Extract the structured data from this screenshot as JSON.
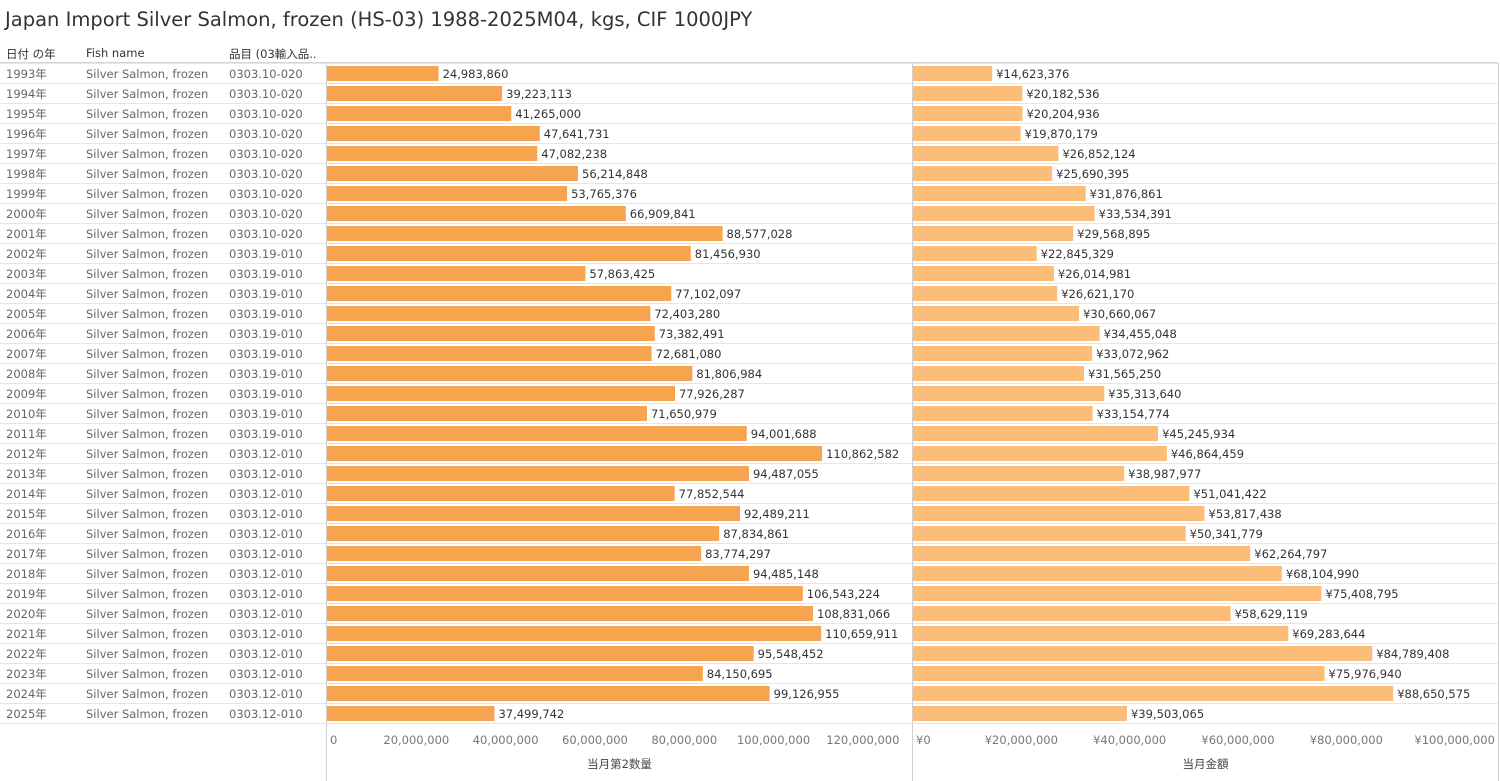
{
  "title": "Japan Import Silver Salmon, frozen (HS-03) 1988-2025M04, kgs, CIF 1000JPY",
  "headers": {
    "year": "日付 の年",
    "fish": "Fish name",
    "code": "品目 (03輸入品.."
  },
  "colors": {
    "qty_bar": "#f6a44f",
    "amt_bar": "#fbbd78",
    "grid": "#dedede",
    "row_line": "#e6e6e6",
    "axis_text": "#777777"
  },
  "chart_data": [
    {
      "type": "table",
      "columns": [
        "日付 の年",
        "Fish name",
        "品目 (03輸入品.."
      ],
      "rows": [
        [
          "1993年",
          "Silver Salmon, frozen",
          "0303.10-020"
        ],
        [
          "1994年",
          "Silver Salmon, frozen",
          "0303.10-020"
        ],
        [
          "1995年",
          "Silver Salmon, frozen",
          "0303.10-020"
        ],
        [
          "1996年",
          "Silver Salmon, frozen",
          "0303.10-020"
        ],
        [
          "1997年",
          "Silver Salmon, frozen",
          "0303.10-020"
        ],
        [
          "1998年",
          "Silver Salmon, frozen",
          "0303.10-020"
        ],
        [
          "1999年",
          "Silver Salmon, frozen",
          "0303.10-020"
        ],
        [
          "2000年",
          "Silver Salmon, frozen",
          "0303.10-020"
        ],
        [
          "2001年",
          "Silver Salmon, frozen",
          "0303.10-020"
        ],
        [
          "2002年",
          "Silver Salmon, frozen",
          "0303.19-010"
        ],
        [
          "2003年",
          "Silver Salmon, frozen",
          "0303.19-010"
        ],
        [
          "2004年",
          "Silver Salmon, frozen",
          "0303.19-010"
        ],
        [
          "2005年",
          "Silver Salmon, frozen",
          "0303.19-010"
        ],
        [
          "2006年",
          "Silver Salmon, frozen",
          "0303.19-010"
        ],
        [
          "2007年",
          "Silver Salmon, frozen",
          "0303.19-010"
        ],
        [
          "2008年",
          "Silver Salmon, frozen",
          "0303.19-010"
        ],
        [
          "2009年",
          "Silver Salmon, frozen",
          "0303.19-010"
        ],
        [
          "2010年",
          "Silver Salmon, frozen",
          "0303.19-010"
        ],
        [
          "2011年",
          "Silver Salmon, frozen",
          "0303.19-010"
        ],
        [
          "2012年",
          "Silver Salmon, frozen",
          "0303.12-010"
        ],
        [
          "2013年",
          "Silver Salmon, frozen",
          "0303.12-010"
        ],
        [
          "2014年",
          "Silver Salmon, frozen",
          "0303.12-010"
        ],
        [
          "2015年",
          "Silver Salmon, frozen",
          "0303.12-010"
        ],
        [
          "2016年",
          "Silver Salmon, frozen",
          "0303.12-010"
        ],
        [
          "2017年",
          "Silver Salmon, frozen",
          "0303.12-010"
        ],
        [
          "2018年",
          "Silver Salmon, frozen",
          "0303.12-010"
        ],
        [
          "2019年",
          "Silver Salmon, frozen",
          "0303.12-010"
        ],
        [
          "2020年",
          "Silver Salmon, frozen",
          "0303.12-010"
        ],
        [
          "2021年",
          "Silver Salmon, frozen",
          "0303.12-010"
        ],
        [
          "2022年",
          "Silver Salmon, frozen",
          "0303.12-010"
        ],
        [
          "2023年",
          "Silver Salmon, frozen",
          "0303.12-010"
        ],
        [
          "2024年",
          "Silver Salmon, frozen",
          "0303.12-010"
        ],
        [
          "2025年",
          "Silver Salmon, frozen",
          "0303.12-010"
        ]
      ]
    },
    {
      "type": "bar",
      "orientation": "horizontal",
      "xlabel": "当月第2数量",
      "xlim": [
        0,
        131000000
      ],
      "xticks": [
        0,
        20000000,
        40000000,
        60000000,
        80000000,
        100000000,
        120000000
      ],
      "xtick_labels": [
        "0",
        "20,000,000",
        "40,000,000",
        "60,000,000",
        "80,000,000",
        "100,000,000",
        "120,000,000"
      ],
      "values": [
        24983860,
        39223113,
        41265000,
        47641731,
        47082238,
        56214848,
        53765376,
        66909841,
        88577028,
        81456930,
        57863425,
        77102097,
        72403280,
        73382491,
        72681080,
        81806984,
        77926287,
        71650979,
        94001688,
        110862582,
        94487055,
        77852544,
        92489211,
        87834861,
        83774297,
        94485148,
        106543224,
        108831066,
        110659911,
        95548452,
        84150695,
        99126955,
        37499742
      ],
      "data_labels": [
        "24,983,860",
        "39,223,113",
        "41,265,000",
        "47,641,731",
        "47,082,238",
        "56,214,848",
        "53,765,376",
        "66,909,841",
        "88,577,028",
        "81,456,930",
        "57,863,425",
        "77,102,097",
        "72,403,280",
        "73,382,491",
        "72,681,080",
        "81,806,984",
        "77,926,287",
        "71,650,979",
        "94,001,688",
        "110,862,582",
        "94,487,055",
        "77,852,544",
        "92,489,211",
        "87,834,861",
        "83,774,297",
        "94,485,148",
        "106,543,224",
        "108,831,066",
        "110,659,911",
        "95,548,452",
        "84,150,695",
        "99,126,955",
        "37,499,742"
      ]
    },
    {
      "type": "bar",
      "orientation": "horizontal",
      "xlabel": "当月金額",
      "xlim": [
        0,
        108000000
      ],
      "xticks": [
        0,
        20000000,
        40000000,
        60000000,
        80000000,
        100000000
      ],
      "xtick_labels": [
        "¥0",
        "¥20,000,000",
        "¥40,000,000",
        "¥60,000,000",
        "¥80,000,000",
        "¥100,000,000"
      ],
      "values": [
        14623376,
        20182536,
        20204936,
        19870179,
        26852124,
        25690395,
        31876861,
        33534391,
        29568895,
        22845329,
        26014981,
        26621170,
        30660067,
        34455048,
        33072962,
        31565250,
        35313640,
        33154774,
        45245934,
        46864459,
        38987977,
        51041422,
        53817438,
        50341779,
        62264797,
        68104990,
        75408795,
        58629119,
        69283644,
        84789408,
        75976940,
        88650575,
        39503065
      ],
      "data_labels": [
        "¥14,623,376",
        "¥20,182,536",
        "¥20,204,936",
        "¥19,870,179",
        "¥26,852,124",
        "¥25,690,395",
        "¥31,876,861",
        "¥33,534,391",
        "¥29,568,895",
        "¥22,845,329",
        "¥26,014,981",
        "¥26,621,170",
        "¥30,660,067",
        "¥34,455,048",
        "¥33,072,962",
        "¥31,565,250",
        "¥35,313,640",
        "¥33,154,774",
        "¥45,245,934",
        "¥46,864,459",
        "¥38,987,977",
        "¥51,041,422",
        "¥53,817,438",
        "¥50,341,779",
        "¥62,264,797",
        "¥68,104,990",
        "¥75,408,795",
        "¥58,629,119",
        "¥69,283,644",
        "¥84,789,408",
        "¥75,976,940",
        "¥88,650,575",
        "¥39,503,065"
      ]
    }
  ]
}
